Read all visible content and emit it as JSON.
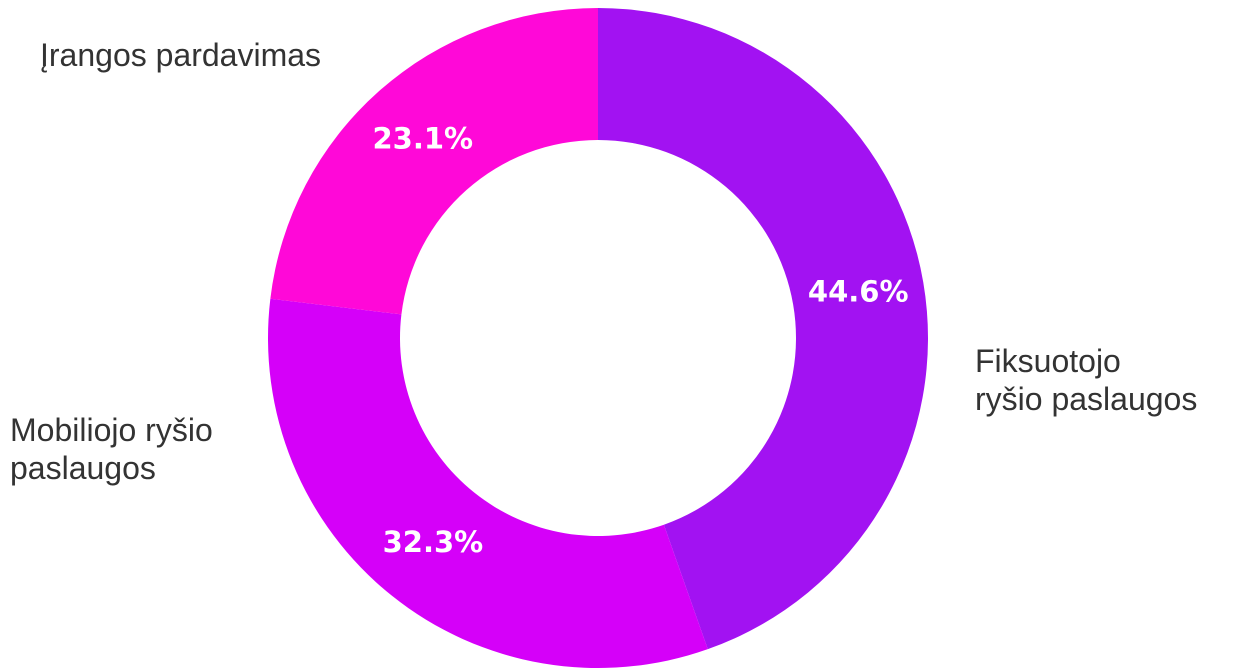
{
  "chart_data": {
    "type": "donut",
    "categories": [
      "Fiksuotojo\nryšio paslaugos",
      "Mobiliojo ryšio\npaslaugos",
      "Įrangos pardavimas"
    ],
    "values": [
      44.6,
      32.3,
      23.1
    ],
    "value_labels": [
      "44.6%",
      "32.3%",
      "23.1%"
    ],
    "colors": [
      "#a212f2",
      "#d500f9",
      "#ff08d8"
    ]
  }
}
